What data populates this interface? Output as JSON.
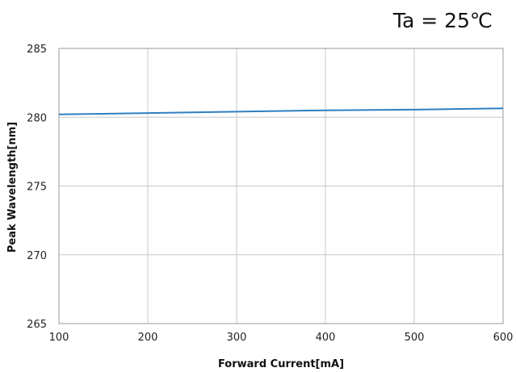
{
  "chart_data": {
    "type": "line",
    "annotation": "Ta = 25℃",
    "xlabel": "Forward Current[mA]",
    "ylabel": "Peak Wavelength[nm]",
    "xlim": [
      100,
      600
    ],
    "ylim": [
      265,
      285
    ],
    "x_ticks": [
      100,
      200,
      300,
      400,
      500,
      600
    ],
    "y_ticks": [
      265,
      270,
      275,
      280,
      285
    ],
    "x_tick_labels": [
      "100",
      "200",
      "300",
      "400",
      "500",
      "600"
    ],
    "y_tick_labels": [
      "265",
      "270",
      "275",
      "280",
      "285"
    ],
    "grid": true,
    "legend": "none",
    "series": [
      {
        "color": "#2e7fc0",
        "x": [
          100,
          200,
          300,
          400,
          500,
          600
        ],
        "y": [
          280.2,
          280.3,
          280.4,
          280.5,
          280.55,
          280.65
        ]
      }
    ]
  }
}
